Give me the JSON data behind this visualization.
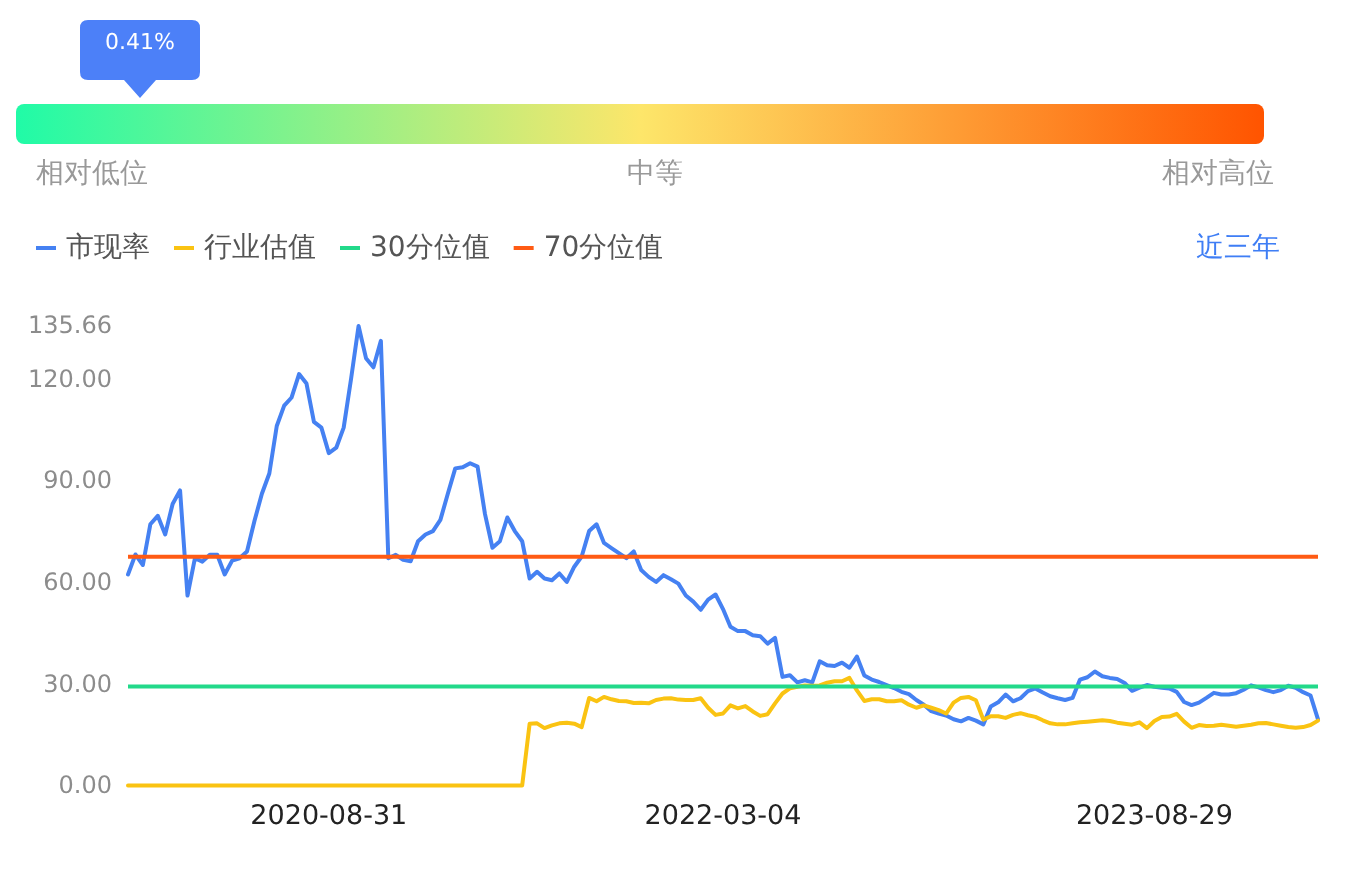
{
  "chart_data": [
    {
      "type": "other",
      "categories": [
        "相对低位",
        "中等",
        "相对高位"
      ],
      "colors": [
        "#20fba7",
        "#fde66a",
        "#ff5400"
      ],
      "color": "#4c80f8",
      "annotations": [
        "0.41%"
      ]
    },
    {
      "type": "line",
      "categories": [
        null,
        null,
        null,
        null,
        null,
        null,
        null,
        null,
        null,
        null,
        null,
        null,
        null,
        null,
        null,
        null,
        null,
        null,
        null,
        null,
        null,
        null,
        null,
        null,
        null,
        null,
        null,
        "2020-08-31",
        null,
        null,
        null,
        null,
        null,
        null,
        null,
        null,
        null,
        null,
        null,
        null,
        null,
        null,
        null,
        null,
        null,
        null,
        null,
        null,
        null,
        null,
        null,
        null,
        null,
        null,
        null,
        null,
        null,
        null,
        null,
        null,
        null,
        null,
        null,
        null,
        null,
        null,
        null,
        null,
        null,
        null,
        null,
        null,
        null,
        null,
        null,
        null,
        null,
        null,
        null,
        null,
        "2022-03-04",
        null,
        null,
        null,
        null,
        null,
        null,
        null,
        null,
        null,
        null,
        null,
        null,
        null,
        null,
        null,
        null,
        null,
        null,
        null,
        null,
        null,
        null,
        null,
        null,
        null,
        null,
        null,
        null,
        null,
        null,
        null,
        null,
        null,
        null,
        null,
        null,
        null,
        null,
        null,
        null,
        null,
        null,
        null,
        null,
        null,
        null,
        null,
        null,
        null,
        null,
        null,
        null,
        null,
        null,
        null,
        null,
        null,
        "2023-08-29",
        null,
        null,
        null,
        null,
        null,
        null,
        null,
        null,
        null,
        null,
        null,
        null,
        null,
        null,
        null,
        null,
        null,
        null,
        null,
        null,
        null,
        null
      ],
      "series": [
        {
          "name": "市现率",
          "color": "#4581f2",
          "values": [
            62.2,
            68.1,
            65,
            77,
            79.5,
            74,
            83,
            87,
            56,
            67,
            66,
            68,
            68,
            62.2,
            66.3,
            67,
            69,
            78,
            86,
            92,
            106,
            112,
            114.4,
            121.3,
            118.5,
            107.2,
            105.5,
            98,
            99.6,
            105.5,
            120,
            135.5,
            126,
            123.3,
            131.1,
            67,
            68,
            66.5,
            66.1,
            72,
            74,
            75,
            78.3,
            86,
            93.5,
            93.8,
            95,
            94,
            80,
            70.1,
            72,
            79,
            75,
            72,
            61,
            63,
            61,
            60.5,
            62.5,
            60,
            64.5,
            67.5,
            75,
            77,
            71.5,
            70,
            68.5,
            67,
            69,
            63.5,
            61.5,
            60,
            62,
            60.8,
            59.5,
            56,
            54.2,
            51.8,
            54.8,
            56.3,
            52,
            46.8,
            45.5,
            45.5,
            44.3,
            44,
            41.8,
            43.5,
            32,
            32.5,
            30.4,
            31,
            30.4,
            36.6,
            35.4,
            35.2,
            36.2,
            34.7,
            38,
            32.4,
            31.2,
            30.5,
            29.6,
            28.7,
            27.6,
            26.9,
            25.2,
            23.8,
            21.9,
            21.2,
            20.6,
            19.5,
            18.9,
            19.9,
            19.1,
            18,
            23.3,
            24.5,
            26.8,
            24.8,
            25.7,
            27.8,
            28.6,
            27.4,
            26.3,
            25.7,
            25.2,
            25.8,
            31.2,
            31.9,
            33.6,
            32.2,
            31.7,
            31.4,
            30.2,
            27.9,
            28.8,
            29.6,
            29.1,
            28.8,
            28.6,
            27.6,
            24.6,
            23.7,
            24.4,
            25.8,
            27.3,
            26.8,
            26.8,
            27.2,
            28.2,
            29.5,
            28.9,
            28.1,
            27.5,
            28.1,
            29.4,
            28.8,
            27.5,
            26.5,
            19.5
          ]
        },
        {
          "name": "行业估值",
          "color": "#fac312",
          "values": [
            0,
            0,
            0,
            0,
            0,
            0,
            0,
            0,
            0,
            0,
            0,
            0,
            0,
            0,
            0,
            0,
            0,
            0,
            0,
            0,
            0,
            0,
            0,
            0,
            0,
            0,
            0,
            0,
            0,
            0,
            0,
            0,
            0,
            0,
            0,
            0,
            0,
            0,
            0,
            0,
            0,
            0,
            0,
            0,
            0,
            0,
            0,
            0,
            0,
            0,
            0,
            0,
            0,
            0,
            18.2,
            18.3,
            16.9,
            17.7,
            18.3,
            18.5,
            18.2,
            17.2,
            25.8,
            24.8,
            26.1,
            25.4,
            24.9,
            24.8,
            24.3,
            24.4,
            24.2,
            25.2,
            25.6,
            25.7,
            25.3,
            25.2,
            25.2,
            25.7,
            22.9,
            20.8,
            21.2,
            23.6,
            22.7,
            23.4,
            21.8,
            20.5,
            21,
            24.2,
            27.1,
            28.6,
            29.1,
            29.5,
            29.4,
            29.5,
            30.3,
            30.7,
            30.7,
            31.7,
            28,
            24.9,
            25.4,
            25.4,
            24.8,
            24.8,
            25.1,
            23.8,
            22.9,
            23.6,
            22.9,
            22.2,
            21.2,
            24.4,
            25.8,
            26.1,
            25.1,
            19.4,
            20.4,
            20.4,
            19.9,
            20.8,
            21.3,
            20.7,
            20.2,
            19.2,
            18.3,
            18,
            18,
            18.3,
            18.6,
            18.8,
            19,
            19.2,
            19,
            18.5,
            18.2,
            17.9,
            18.6,
            16.9,
            19,
            20.2,
            20.3,
            21.1,
            18.8,
            17,
            17.8,
            17.5,
            17.6,
            17.9,
            17.6,
            17.3,
            17.6,
            17.9,
            18.3,
            18.4,
            18,
            17.6,
            17.2,
            17,
            17.2,
            17.8,
            19.1
          ]
        }
      ],
      "ylim": [
        0,
        135.66
      ],
      "yticks": [
        {
          "value": 0,
          "label": "0.00"
        },
        {
          "value": 30,
          "label": "30.00"
        },
        {
          "value": 60,
          "label": "60.00"
        },
        {
          "value": 90,
          "label": "90.00"
        },
        {
          "value": 120,
          "label": "120.00"
        },
        135.66
      ],
      "ref_lines": [
        {
          "axis": "y",
          "value": 29.2,
          "label": "30分位值",
          "color": "#22d98a"
        },
        {
          "axis": "y",
          "value": 67.4,
          "label": "70分位值",
          "color": "#ff5b14"
        }
      ],
      "legend": "top left",
      "annotations": [
        "近三年"
      ]
    }
  ]
}
